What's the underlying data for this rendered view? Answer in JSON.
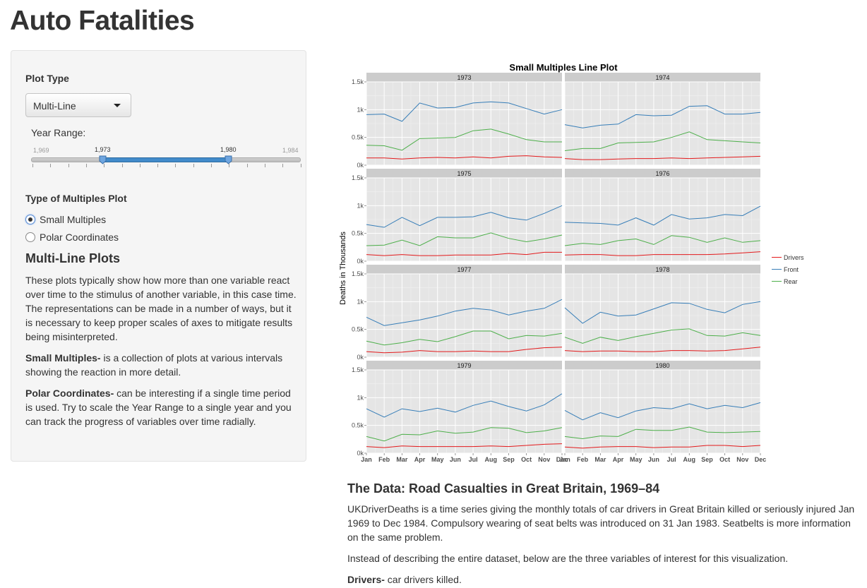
{
  "page": {
    "title": "Auto Fatalities"
  },
  "sidebar": {
    "plot_type_label": "Plot Type",
    "plot_type_value": "Multi-Line",
    "year_range_label": "Year Range:",
    "year_min": "1,969",
    "year_max": "1,984",
    "year_from": "1,973",
    "year_to": "1,980",
    "multiples_label": "Type of Multiples Plot",
    "options": [
      "Small Multiples",
      "Polar Coordinates"
    ],
    "selected_option": "Small Multiples",
    "section_heading": "Multi-Line Plots",
    "description": "These plots typically show how more than one variable react over time to the stimulus of another variable, in this case time. The representations can be made in a number of ways, but it is necessary to keep proper scales of axes to mitigate results being misinterpreted.",
    "small_multiples_term": "Small Multiples-",
    "small_multiples_text": " is a collection of plots at various intervals showing the reaction in more detail.",
    "polar_term": "Polar Coordinates-",
    "polar_text": " can be interesting if a single time period is used. Try to scale the Year Range to a single year and you can track the progress of variables over time radially."
  },
  "colors": {
    "drivers": "#e41a1c",
    "front": "#377eb8",
    "rear": "#4daf4a",
    "panel_bg": "#e5e5e5",
    "strip_bg": "#cccccc",
    "accent": "#428bca"
  },
  "chart_data": {
    "type": "line",
    "title": "Small Multiples Line Plot",
    "ylabel": "Deaths in Thousands",
    "xlabel": "",
    "x": [
      "Jan",
      "Feb",
      "Mar",
      "Apr",
      "May",
      "Jun",
      "Jul",
      "Aug",
      "Sep",
      "Oct",
      "Nov",
      "Dec"
    ],
    "ylim": [
      0,
      1.5
    ],
    "yticks": [
      "0k",
      "0.5k",
      "1k",
      "1.5k"
    ],
    "legend_position": "right",
    "grid": true,
    "panels": [
      {
        "year": "1973",
        "series": [
          {
            "name": "Drivers",
            "values": [
              0.13,
              0.13,
              0.11,
              0.13,
              0.14,
              0.13,
              0.15,
              0.13,
              0.16,
              0.17,
              0.15,
              0.14
            ]
          },
          {
            "name": "Front",
            "values": [
              0.91,
              0.92,
              0.79,
              1.12,
              1.03,
              1.04,
              1.12,
              1.14,
              1.12,
              1.02,
              0.92,
              1.0
            ]
          },
          {
            "name": "Rear",
            "values": [
              0.36,
              0.35,
              0.27,
              0.48,
              0.49,
              0.5,
              0.62,
              0.65,
              0.56,
              0.46,
              0.42,
              0.42
            ]
          }
        ]
      },
      {
        "year": "1974",
        "series": [
          {
            "name": "Drivers",
            "values": [
              0.12,
              0.1,
              0.1,
              0.11,
              0.12,
              0.12,
              0.13,
              0.12,
              0.13,
              0.14,
              0.15,
              0.16
            ]
          },
          {
            "name": "Front",
            "values": [
              0.73,
              0.67,
              0.72,
              0.74,
              0.91,
              0.89,
              0.9,
              1.06,
              1.07,
              0.92,
              0.92,
              0.95
            ]
          },
          {
            "name": "Rear",
            "values": [
              0.26,
              0.3,
              0.3,
              0.4,
              0.41,
              0.42,
              0.5,
              0.6,
              0.46,
              0.44,
              0.42,
              0.4
            ]
          }
        ]
      },
      {
        "year": "1975",
        "series": [
          {
            "name": "Drivers",
            "values": [
              0.12,
              0.1,
              0.12,
              0.1,
              0.1,
              0.11,
              0.11,
              0.11,
              0.14,
              0.12,
              0.16,
              0.16
            ]
          },
          {
            "name": "Front",
            "values": [
              0.66,
              0.61,
              0.79,
              0.64,
              0.79,
              0.79,
              0.8,
              0.88,
              0.78,
              0.74,
              0.86,
              1.0
            ]
          },
          {
            "name": "Rear",
            "values": [
              0.28,
              0.29,
              0.38,
              0.28,
              0.44,
              0.42,
              0.42,
              0.51,
              0.41,
              0.35,
              0.4,
              0.47
            ]
          }
        ]
      },
      {
        "year": "1976",
        "series": [
          {
            "name": "Drivers",
            "values": [
              0.11,
              0.12,
              0.12,
              0.1,
              0.1,
              0.12,
              0.12,
              0.12,
              0.12,
              0.13,
              0.15,
              0.17
            ]
          },
          {
            "name": "Front",
            "values": [
              0.7,
              0.69,
              0.68,
              0.65,
              0.78,
              0.65,
              0.84,
              0.76,
              0.78,
              0.84,
              0.82,
              0.99
            ]
          },
          {
            "name": "Rear",
            "values": [
              0.28,
              0.32,
              0.3,
              0.37,
              0.4,
              0.3,
              0.46,
              0.43,
              0.34,
              0.42,
              0.34,
              0.37
            ]
          }
        ]
      },
      {
        "year": "1977",
        "series": [
          {
            "name": "Drivers",
            "values": [
              0.1,
              0.08,
              0.09,
              0.12,
              0.1,
              0.1,
              0.11,
              0.1,
              0.1,
              0.14,
              0.17,
              0.18
            ]
          },
          {
            "name": "Front",
            "values": [
              0.72,
              0.57,
              0.62,
              0.67,
              0.74,
              0.83,
              0.88,
              0.85,
              0.76,
              0.83,
              0.88,
              1.04
            ]
          },
          {
            "name": "Rear",
            "values": [
              0.29,
              0.22,
              0.26,
              0.32,
              0.28,
              0.37,
              0.47,
              0.47,
              0.33,
              0.39,
              0.38,
              0.43
            ]
          }
        ]
      },
      {
        "year": "1978",
        "series": [
          {
            "name": "Drivers",
            "values": [
              0.12,
              0.1,
              0.11,
              0.11,
              0.1,
              0.1,
              0.12,
              0.12,
              0.11,
              0.12,
              0.15,
              0.18
            ]
          },
          {
            "name": "Front",
            "values": [
              0.89,
              0.61,
              0.81,
              0.74,
              0.76,
              0.87,
              0.98,
              0.97,
              0.86,
              0.8,
              0.95,
              1.0
            ]
          },
          {
            "name": "Rear",
            "values": [
              0.36,
              0.25,
              0.36,
              0.3,
              0.37,
              0.43,
              0.49,
              0.51,
              0.39,
              0.38,
              0.44,
              0.39
            ]
          }
        ]
      },
      {
        "year": "1979",
        "series": [
          {
            "name": "Drivers",
            "values": [
              0.12,
              0.1,
              0.13,
              0.12,
              0.12,
              0.12,
              0.12,
              0.13,
              0.12,
              0.14,
              0.16,
              0.17
            ]
          },
          {
            "name": "Front",
            "values": [
              0.8,
              0.65,
              0.8,
              0.75,
              0.81,
              0.74,
              0.86,
              0.94,
              0.84,
              0.76,
              0.87,
              1.07
            ]
          },
          {
            "name": "Rear",
            "values": [
              0.3,
              0.22,
              0.34,
              0.33,
              0.4,
              0.36,
              0.38,
              0.46,
              0.45,
              0.37,
              0.4,
              0.46
            ]
          }
        ]
      },
      {
        "year": "1980",
        "series": [
          {
            "name": "Drivers",
            "values": [
              0.11,
              0.09,
              0.11,
              0.12,
              0.12,
              0.1,
              0.11,
              0.11,
              0.14,
              0.14,
              0.12,
              0.14
            ]
          },
          {
            "name": "Front",
            "values": [
              0.77,
              0.6,
              0.73,
              0.64,
              0.76,
              0.82,
              0.8,
              0.89,
              0.8,
              0.86,
              0.82,
              0.91
            ]
          },
          {
            "name": "Rear",
            "values": [
              0.3,
              0.26,
              0.31,
              0.3,
              0.43,
              0.41,
              0.41,
              0.47,
              0.38,
              0.37,
              0.38,
              0.39
            ]
          }
        ]
      }
    ],
    "legend": [
      "Drivers",
      "Front",
      "Rear"
    ]
  },
  "data_section": {
    "heading": "The Data: Road Casualties in Great Britain, 1969–84",
    "para1": "UKDriverDeaths is a time series giving the monthly totals of car drivers in Great Britain killed or seriously injured Jan 1969 to Dec 1984. Compulsory wearing of seat belts was introduced on 31 Jan 1983. Seatbelts is more information on the same problem.",
    "para2": "Instead of describing the entire dataset, below are the three variables of interest for this visualization.",
    "drivers_term": "Drivers-",
    "drivers_text": " car drivers killed."
  }
}
